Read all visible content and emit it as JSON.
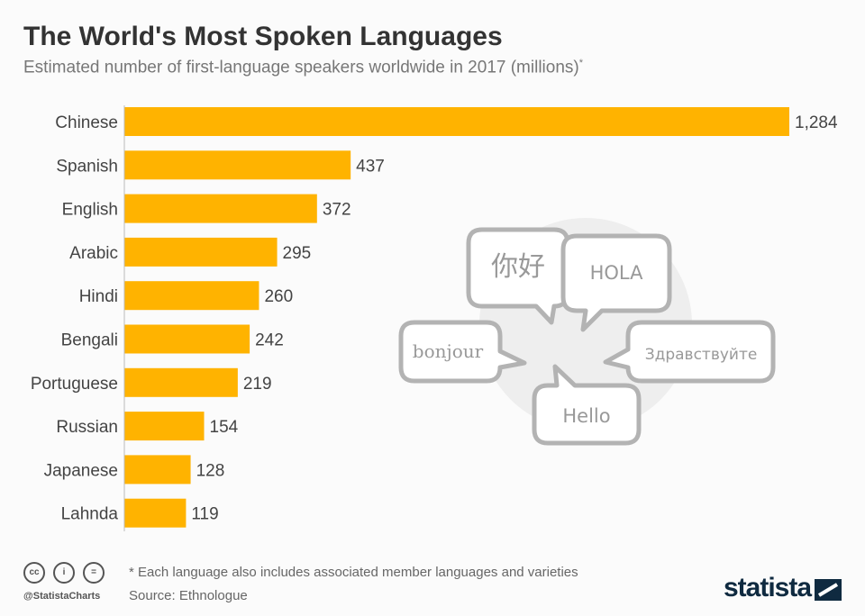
{
  "chart_data": {
    "type": "bar",
    "orientation": "horizontal",
    "title": "The World's Most Spoken Languages",
    "subtitle": "Estimated number of first-language speakers worldwide in 2017 (millions)",
    "subtitle_mark": "*",
    "categories": [
      "Chinese",
      "Spanish",
      "English",
      "Arabic",
      "Hindi",
      "Bengali",
      "Portuguese",
      "Russian",
      "Japanese",
      "Lahnda"
    ],
    "values": [
      1284,
      437,
      372,
      295,
      260,
      242,
      219,
      154,
      128,
      119
    ],
    "value_labels": [
      "1,284",
      "437",
      "372",
      "295",
      "260",
      "242",
      "219",
      "154",
      "128",
      "119"
    ],
    "bar_color": "#ffb300",
    "xlim": [
      0,
      1284
    ],
    "grid": false
  },
  "illustration": {
    "bubbles": [
      "你好",
      "HOLA",
      "bonjour",
      "Здравствуйте",
      "Hello"
    ]
  },
  "footer": {
    "note": "* Each language also includes associated member languages and varieties",
    "source": "Source: Ethnologue",
    "handle": "@StatistaCharts",
    "cc_icons": [
      "cc",
      "i",
      "="
    ],
    "brand": "statista"
  }
}
